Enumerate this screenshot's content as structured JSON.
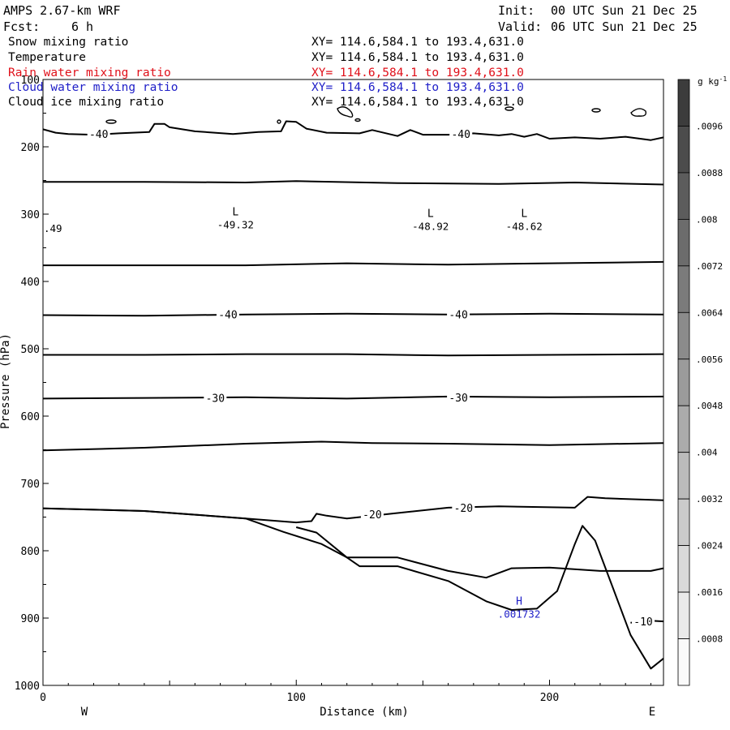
{
  "header": {
    "model": "AMPS 2.67-km WRF",
    "init_label": "Init:",
    "init_value": "00 UTC Sun 21 Dec 25",
    "fcst_label": "Fcst:",
    "fcst_value": "6 h",
    "valid_label": "Valid:",
    "valid_value": "06 UTC Sun 21 Dec 25"
  },
  "fields": [
    {
      "name": "Snow mixing ratio",
      "xy": "XY= 114.6,584.1 to 193.4,631.0",
      "color": "#000000"
    },
    {
      "name": "Temperature",
      "xy": "XY= 114.6,584.1 to 193.4,631.0",
      "color": "#000000"
    },
    {
      "name": "Rain water mixing ratio",
      "xy": "XY= 114.6,584.1 to 193.4,631.0",
      "color": "#e0101a"
    },
    {
      "name": "Cloud water mixing ratio",
      "xy": "XY= 114.6,584.1 to 193.4,631.0",
      "color": "#1e1ec8"
    },
    {
      "name": "Cloud ice mixing ratio",
      "xy": "XY= 114.6,584.1 to 193.4,631.0",
      "color": "#000000"
    }
  ],
  "chart_data": {
    "type": "contour_cross_section",
    "xlabel": "Distance (km)",
    "ylabel": "Pressure (hPa)",
    "xlim": [
      0,
      245
    ],
    "ylim": [
      1000,
      100
    ],
    "x_ticks": [
      0,
      100,
      200
    ],
    "y_ticks": [
      100,
      200,
      300,
      400,
      500,
      600,
      700,
      800,
      900,
      1000
    ],
    "left_end_label": "W",
    "right_end_label": "E",
    "colorbar": {
      "unit": "g kg",
      "unit_exponent": "-1",
      "levels": [
        ".0096",
        ".0088",
        ".008",
        ".0072",
        ".0064",
        ".0056",
        ".0048",
        ".004",
        ".0032",
        ".0024",
        ".0016",
        ".0008"
      ]
    },
    "temperature_contours": [
      {
        "points": [
          [
            0,
            174
          ],
          [
            5,
            179
          ],
          [
            10,
            181
          ],
          [
            20,
            182
          ],
          [
            30,
            180
          ],
          [
            42,
            178
          ],
          [
            44,
            166
          ],
          [
            48,
            166
          ],
          [
            50,
            171
          ],
          [
            60,
            177
          ],
          [
            75,
            181
          ],
          [
            85,
            178
          ],
          [
            94,
            177
          ],
          [
            96,
            162
          ],
          [
            100,
            163
          ],
          [
            104,
            173
          ],
          [
            112,
            179
          ],
          [
            125,
            180
          ],
          [
            130,
            175
          ],
          [
            140,
            184
          ],
          [
            145,
            175
          ],
          [
            150,
            182
          ],
          [
            160,
            182
          ],
          [
            170,
            180
          ],
          [
            180,
            183
          ],
          [
            185,
            181
          ],
          [
            190,
            185
          ],
          [
            195,
            181
          ],
          [
            200,
            188
          ],
          [
            210,
            186
          ],
          [
            220,
            188
          ],
          [
            230,
            185
          ],
          [
            240,
            190
          ],
          [
            245,
            186
          ]
        ]
      },
      {
        "points": [
          [
            0,
            252
          ],
          [
            40,
            252
          ],
          [
            80,
            253
          ],
          [
            100,
            251
          ],
          [
            140,
            254
          ],
          [
            180,
            255
          ],
          [
            210,
            253
          ],
          [
            245,
            256
          ]
        ]
      },
      {
        "points": [
          [
            0,
            376
          ],
          [
            40,
            376
          ],
          [
            80,
            376
          ],
          [
            120,
            373
          ],
          [
            160,
            375
          ],
          [
            200,
            373
          ],
          [
            245,
            371
          ]
        ]
      },
      {
        "points": [
          [
            0,
            450
          ],
          [
            40,
            451
          ],
          [
            80,
            449
          ],
          [
            120,
            448
          ],
          [
            160,
            449
          ],
          [
            200,
            448
          ],
          [
            245,
            449
          ]
        ]
      },
      {
        "points": [
          [
            0,
            509
          ],
          [
            40,
            509
          ],
          [
            80,
            508
          ],
          [
            120,
            508
          ],
          [
            160,
            510
          ],
          [
            200,
            509
          ],
          [
            245,
            508
          ]
        ]
      },
      {
        "points": [
          [
            0,
            574
          ],
          [
            40,
            573
          ],
          [
            80,
            572
          ],
          [
            120,
            574
          ],
          [
            160,
            571
          ],
          [
            200,
            572
          ],
          [
            245,
            571
          ]
        ]
      },
      {
        "points": [
          [
            0,
            651
          ],
          [
            40,
            647
          ],
          [
            80,
            641
          ],
          [
            110,
            638
          ],
          [
            130,
            640
          ],
          [
            160,
            641
          ],
          [
            200,
            643
          ],
          [
            245,
            640
          ]
        ]
      },
      {
        "points": [
          [
            0,
            737
          ],
          [
            40,
            741
          ],
          [
            80,
            752
          ],
          [
            100,
            758
          ],
          [
            106,
            756
          ],
          [
            108,
            745
          ],
          [
            112,
            748
          ],
          [
            120,
            752
          ],
          [
            140,
            744
          ],
          [
            160,
            736
          ],
          [
            180,
            734
          ],
          [
            210,
            736
          ],
          [
            215,
            720
          ],
          [
            222,
            722
          ],
          [
            245,
            725
          ]
        ]
      },
      {
        "points": [
          [
            100,
            765
          ],
          [
            108,
            773
          ],
          [
            120,
            810
          ],
          [
            140,
            810
          ],
          [
            160,
            830
          ],
          [
            175,
            840
          ],
          [
            185,
            826
          ],
          [
            200,
            825
          ],
          [
            220,
            830
          ],
          [
            240,
            830
          ],
          [
            245,
            826
          ]
        ]
      },
      {
        "points": [
          [
            232,
            907
          ],
          [
            240,
            904
          ],
          [
            245,
            905
          ]
        ]
      }
    ],
    "temperature_labels": [
      {
        "x": 22,
        "p": 181,
        "text": "-40"
      },
      {
        "x": 165,
        "p": 181,
        "text": "-40"
      },
      {
        "x": 73,
        "p": 449,
        "text": "-40"
      },
      {
        "x": 164,
        "p": 449,
        "text": "-40"
      },
      {
        "x": 68,
        "p": 573,
        "text": "-30"
      },
      {
        "x": 164,
        "p": 572,
        "text": "-30"
      },
      {
        "x": 130,
        "p": 746,
        "text": "-20"
      },
      {
        "x": 166,
        "p": 736,
        "text": "-20"
      },
      {
        "x": 237,
        "p": 905,
        "text": "-10"
      }
    ],
    "extrema": [
      {
        "x": 76,
        "p": 302,
        "symbol": "L",
        "value": "-49.32",
        "color": "#000000"
      },
      {
        "x": 153,
        "p": 304,
        "symbol": "L",
        "value": "-48.92",
        "color": "#000000"
      },
      {
        "x": 190,
        "p": 304,
        "symbol": "L",
        "value": "-48.62",
        "color": "#000000"
      },
      {
        "x": 188,
        "p": 880,
        "symbol": "H",
        "value": ".001732",
        "color": "#1e1ec8"
      }
    ],
    "edge_value": ".49",
    "terrain": [
      [
        0,
        737
      ],
      [
        40,
        741
      ],
      [
        80,
        752
      ],
      [
        95,
        772
      ],
      [
        110,
        790
      ],
      [
        120,
        810
      ],
      [
        125,
        823
      ],
      [
        140,
        823
      ],
      [
        160,
        845
      ],
      [
        175,
        875
      ],
      [
        185,
        888
      ],
      [
        195,
        886
      ],
      [
        203,
        860
      ],
      [
        210,
        790
      ],
      [
        213,
        763
      ],
      [
        218,
        785
      ],
      [
        225,
        855
      ],
      [
        232,
        925
      ],
      [
        240,
        975
      ],
      [
        245,
        960
      ]
    ]
  }
}
